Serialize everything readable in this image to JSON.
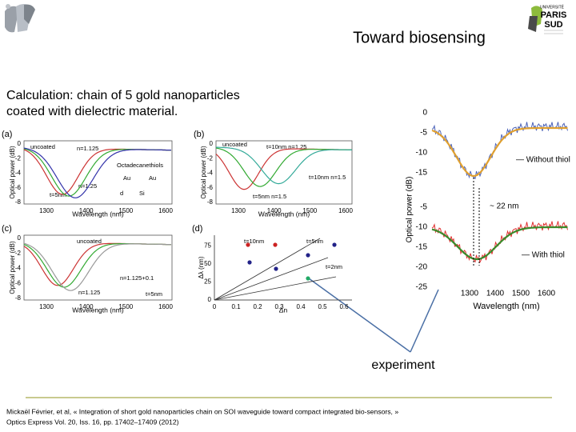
{
  "header": {
    "title": "Toward biosensing",
    "logo_right": [
      "UNIVERSITÉ",
      "PARIS",
      "SUD"
    ]
  },
  "intro": [
    "Calculation: chain of 5 gold nanoparticles",
    "coated with dielectric material."
  ],
  "panels": [
    {
      "label": "(a)",
      "y_label": "Optical power (dB)",
      "x_label": "Wavelength (nm)",
      "y_ticks": [
        "0",
        "-2",
        "-4",
        "-6",
        "-8"
      ],
      "x_ticks": [
        "1300",
        "1400",
        "1500",
        "1600"
      ],
      "notes": [
        "uncoated",
        "n=1.125",
        "Octadecanethiols",
        "Au",
        "Au",
        "d",
        "Si",
        "t=5nm",
        "n=1.25"
      ]
    },
    {
      "label": "(b)",
      "y_label": "Optical power (dB)",
      "x_label": "Wavelength (nm)",
      "y_ticks": [
        "0",
        "-2",
        "-4",
        "-6",
        "-8"
      ],
      "x_ticks": [
        "1300",
        "1400",
        "1500",
        "1600"
      ],
      "notes": [
        "uncoated",
        "t=10nm n=1.25",
        "t=10nm n=1.5",
        "t=5nm n=1.5"
      ]
    },
    {
      "label": "(c)",
      "y_label": "Optical power (dB)",
      "x_label": "Wavelength (nm)",
      "y_ticks": [
        "0",
        "-2",
        "-4",
        "-6",
        "-8"
      ],
      "x_ticks": [
        "1300",
        "1400",
        "1500",
        "1600"
      ],
      "notes": [
        "uncoated",
        "n=1.125+0.1",
        "n=1.125",
        "t=5nm"
      ]
    },
    {
      "label": "(d)",
      "y_label": "Δλ (nm)",
      "x_label": "Δn",
      "y_ticks": [
        "0",
        "25",
        "50",
        "75"
      ],
      "x_ticks": [
        "0",
        "0.1",
        "0.2",
        "0.3",
        "0.4",
        "0.5",
        "0.6"
      ],
      "notes": [
        "t=10nm",
        "t=5nm",
        "t=2nm"
      ]
    }
  ],
  "experiment_plot": {
    "y_label": "Optical power (dB)",
    "x_label": "Wavelength (nm)",
    "y_ticks_top": [
      "0",
      "-5",
      "-10",
      "-15"
    ],
    "y_ticks_bottom": [
      "-5",
      "-10",
      "-15",
      "-20",
      "-25"
    ],
    "x_ticks": [
      "1300",
      "1400",
      "1500",
      "1600"
    ],
    "notes": [
      "— Without thiol",
      "~ 22 nm",
      "— With thiol"
    ]
  },
  "annotation": "experiment",
  "reference": [
    "Mickaël Février, et al, « Integration of short gold nanoparticles chain on SOI waveguide toward compact integrated bio-sensors, »",
    "Optics Express Vol. 20, Iss. 16, pp. 17402–17409 (2012)"
  ]
}
